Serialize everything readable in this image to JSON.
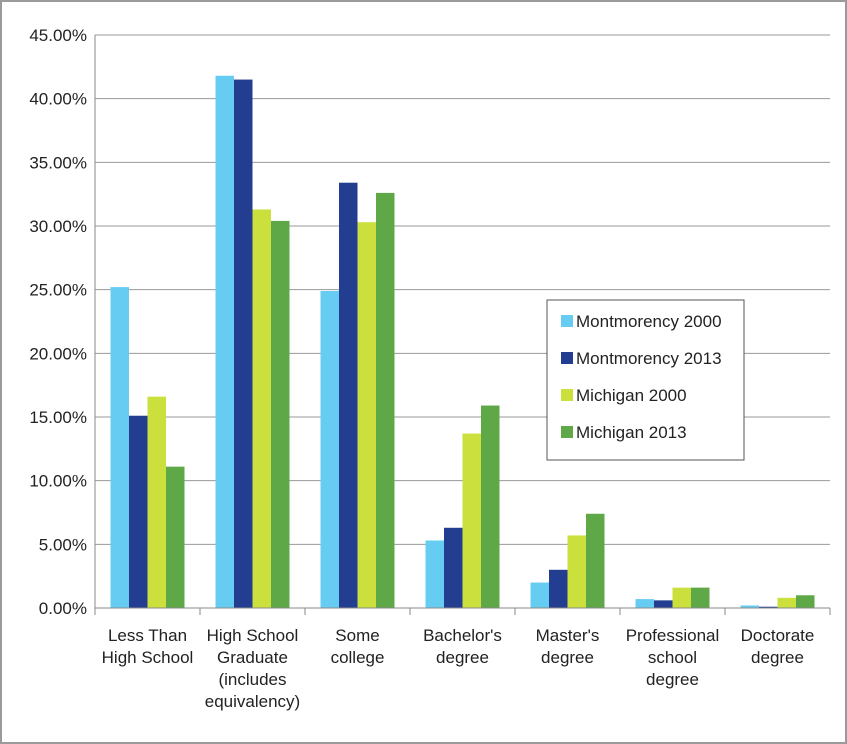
{
  "chart_data": {
    "type": "bar",
    "categories": [
      [
        "Less Than",
        "High School"
      ],
      [
        "High School",
        "Graduate",
        "(includes",
        "equivalency)"
      ],
      [
        "Some",
        "college"
      ],
      [
        "Bachelor's",
        "degree"
      ],
      [
        "Master's",
        "degree"
      ],
      [
        "Professional",
        "school",
        "degree"
      ],
      [
        "Doctorate",
        "degree"
      ]
    ],
    "series": [
      {
        "name": "Montmorency 2000",
        "color": "#66ccf2",
        "values": [
          25.2,
          41.8,
          24.9,
          5.3,
          2.0,
          0.7,
          0.2
        ]
      },
      {
        "name": "Montmorency 2013",
        "color": "#233e90",
        "values": [
          15.1,
          41.5,
          33.4,
          6.3,
          3.0,
          0.6,
          0.1
        ]
      },
      {
        "name": "Michigan 2000",
        "color": "#cbe03c",
        "values": [
          16.6,
          31.3,
          30.3,
          13.7,
          5.7,
          1.6,
          0.8
        ]
      },
      {
        "name": "Michigan 2013",
        "color": "#5ea847",
        "values": [
          11.1,
          30.4,
          32.6,
          15.9,
          7.4,
          1.6,
          1.0
        ]
      }
    ],
    "yticks": [
      "0.00%",
      "5.00%",
      "10.00%",
      "15.00%",
      "20.00%",
      "25.00%",
      "30.00%",
      "35.00%",
      "40.00%",
      "45.00%"
    ],
    "ylim": [
      0,
      45
    ],
    "grid": true,
    "legend_position": "right"
  }
}
